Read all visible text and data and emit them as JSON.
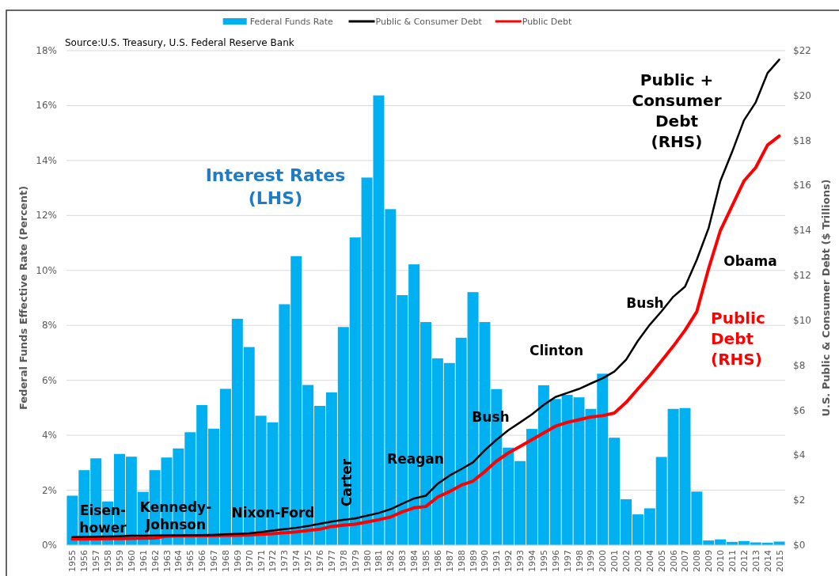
{
  "chart_data": {
    "type": "bar",
    "categories": [
      "1955",
      "1956",
      "1957",
      "1958",
      "1959",
      "1960",
      "1961",
      "1962",
      "1963",
      "1964",
      "1965",
      "1966",
      "1967",
      "1968",
      "1969",
      "1970",
      "1971",
      "1972",
      "1973",
      "1974",
      "1975",
      "1976",
      "1977",
      "1978",
      "1979",
      "1980",
      "1981",
      "1982",
      "1983",
      "1984",
      "1985",
      "1986",
      "1987",
      "1988",
      "1989",
      "1990",
      "1991",
      "1992",
      "1993",
      "1994",
      "1995",
      "1996",
      "1997",
      "1998",
      "1999",
      "2000",
      "2001",
      "2002",
      "2003",
      "2004",
      "2005",
      "2006",
      "2007",
      "2008",
      "2009",
      "2010",
      "2011",
      "2012",
      "2013",
      "2014",
      "2015"
    ],
    "series": [
      {
        "name": "Federal Funds Rate",
        "color": "#00b0f0",
        "values": [
          1.8,
          2.73,
          3.16,
          1.59,
          3.32,
          3.22,
          1.94,
          2.73,
          3.19,
          3.52,
          4.11,
          5.1,
          4.24,
          5.69,
          8.24,
          7.21,
          4.71,
          4.47,
          8.77,
          10.52,
          5.83,
          5.07,
          5.56,
          7.94,
          11.2,
          13.38,
          16.37,
          12.23,
          9.1,
          10.22,
          8.12,
          6.8,
          6.63,
          7.55,
          9.21,
          8.12,
          5.68,
          3.55,
          3.06,
          4.23,
          5.82,
          5.32,
          5.47,
          5.38,
          4.96,
          6.24,
          3.91,
          1.67,
          1.12,
          1.34,
          3.21,
          4.96,
          4.99,
          1.95,
          0.17,
          0.21,
          0.12,
          0.15,
          0.1,
          0.09,
          0.13
        ]
      },
      {
        "name": "Public & Consumer Debt",
        "type": "line",
        "axis": "y2",
        "color": "#000000",
        "values": [
          0.36,
          0.37,
          0.38,
          0.39,
          0.4,
          0.42,
          0.42,
          0.43,
          0.44,
          0.44,
          0.45,
          0.45,
          0.46,
          0.48,
          0.5,
          0.53,
          0.58,
          0.65,
          0.71,
          0.77,
          0.85,
          0.95,
          1.05,
          1.13,
          1.19,
          1.31,
          1.43,
          1.6,
          1.84,
          2.08,
          2.2,
          2.73,
          3.09,
          3.38,
          3.68,
          4.22,
          4.69,
          5.11,
          5.46,
          5.82,
          6.24,
          6.59,
          6.77,
          6.95,
          7.19,
          7.42,
          7.72,
          8.25,
          9.09,
          9.8,
          10.4,
          11.05,
          11.5,
          12.7,
          14.1,
          16.2,
          17.5,
          18.9,
          19.7,
          21.0,
          21.6
        ]
      },
      {
        "name": "Public Debt",
        "type": "line",
        "axis": "y2",
        "color": "#ff0000",
        "values": [
          0.27,
          0.27,
          0.28,
          0.29,
          0.29,
          0.3,
          0.31,
          0.32,
          0.4,
          0.41,
          0.41,
          0.42,
          0.42,
          0.43,
          0.44,
          0.45,
          0.48,
          0.51,
          0.55,
          0.59,
          0.65,
          0.71,
          0.83,
          0.89,
          0.93,
          1.03,
          1.13,
          1.25,
          1.48,
          1.66,
          1.72,
          2.14,
          2.38,
          2.67,
          2.85,
          3.27,
          3.74,
          4.1,
          4.39,
          4.69,
          4.99,
          5.29,
          5.46,
          5.58,
          5.7,
          5.76,
          5.88,
          6.35,
          6.95,
          7.54,
          8.19,
          8.85,
          9.56,
          10.39,
          12.3,
          14.0,
          15.1,
          16.2,
          16.8,
          17.8,
          18.2
        ]
      }
    ],
    "ylabel": "Federal Funds Effective Rate (Percent)",
    "y2label": "U.S. Public & Consumer Debt ($ Trillions)",
    "ylim": [
      0,
      18
    ],
    "yticks": [
      {
        "value": 0,
        "label": "0%"
      },
      {
        "value": 2,
        "label": "2%"
      },
      {
        "value": 4,
        "label": "4%"
      },
      {
        "value": 6,
        "label": "6%"
      },
      {
        "value": 8,
        "label": "8%"
      },
      {
        "value": 10,
        "label": "10%"
      },
      {
        "value": 12,
        "label": "12%"
      },
      {
        "value": 14,
        "label": "14%"
      },
      {
        "value": 16,
        "label": "16%"
      },
      {
        "value": 18,
        "label": "18%"
      }
    ],
    "y2lim": [
      0,
      22
    ],
    "y2ticks": [
      {
        "value": 0,
        "label": "$0"
      },
      {
        "value": 2,
        "label": "$2"
      },
      {
        "value": 4,
        "label": "$4"
      },
      {
        "value": 6,
        "label": "$6"
      },
      {
        "value": 8,
        "label": "$8"
      },
      {
        "value": 10,
        "label": "$10"
      },
      {
        "value": 12,
        "label": "$12"
      },
      {
        "value": 14,
        "label": "$14"
      },
      {
        "value": 16,
        "label": "$16"
      },
      {
        "value": 18,
        "label": "$18"
      },
      {
        "value": 20,
        "label": "$20"
      },
      {
        "value": 22,
        "label": "$22"
      }
    ],
    "grid": "y",
    "legend": "top",
    "line_style": "solid",
    "marker": "none",
    "annotations": [
      "Source:U.S. Treasury, U.S. Federal Reserve Bank",
      "Interest Rates\n(LHS)",
      "Public +\nConsumer\nDebt\n(RHS)",
      "Public\nDebt\n(RHS)",
      "Eisen-\nhower",
      "Kennedy-\nJohnson",
      "Nixon-Ford",
      "Carter",
      "Reagan",
      "Bush",
      "Clinton",
      "Bush",
      "Obama"
    ]
  }
}
